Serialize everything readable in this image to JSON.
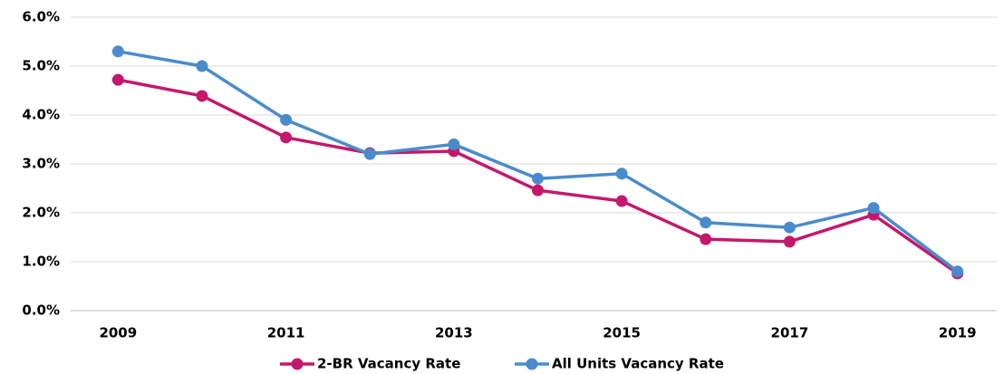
{
  "chart_data": {
    "type": "line",
    "categories": [
      "2009",
      null,
      "2011",
      null,
      "2013",
      null,
      "2015",
      null,
      "2017",
      null,
      "2019"
    ],
    "series": [
      {
        "name": "2-BR Vacancy Rate",
        "color": "#c4186c",
        "values": [
          4.72,
          4.39,
          3.54,
          3.22,
          3.26,
          2.46,
          2.24,
          1.46,
          1.41,
          1.96,
          0.76
        ]
      },
      {
        "name": "All Units Vacancy Rate",
        "color": "#4a8ccb",
        "values": [
          5.3,
          5.0,
          3.9,
          3.2,
          3.4,
          2.7,
          2.8,
          1.8,
          1.7,
          2.1,
          0.8
        ]
      }
    ],
    "ylim": [
      0,
      6
    ],
    "yticks": [
      {
        "value": 0,
        "label": "0.0%"
      },
      {
        "value": 1,
        "label": "1.0%"
      },
      {
        "value": 2,
        "label": "2.0%"
      },
      {
        "value": 3,
        "label": "3.0%"
      },
      {
        "value": 4,
        "label": "4.0%"
      },
      {
        "value": 5,
        "label": "5.0%"
      },
      {
        "value": 6,
        "label": "6.0%"
      }
    ],
    "grid": true,
    "legend": "bottom"
  }
}
